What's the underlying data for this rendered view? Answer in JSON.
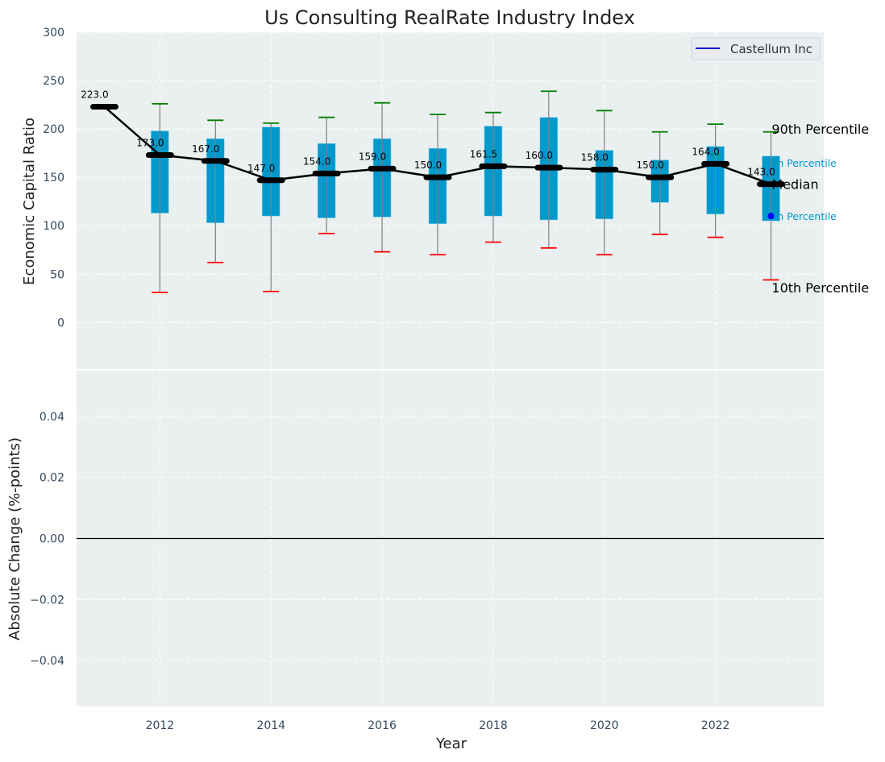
{
  "chart_data": [
    {
      "type": "box",
      "panel": "top",
      "title": "Us Consulting RealRate Industry Index",
      "xlabel": "",
      "ylabel": "Economic Capital Ratio",
      "xlim": [
        2010.5,
        2023.95
      ],
      "ylim": [
        -48,
        300
      ],
      "yticks": [
        0,
        50,
        100,
        150,
        200,
        250,
        300
      ],
      "grid": true,
      "legend": {
        "placement": "top-right",
        "entries": [
          {
            "label": "Castellum Inc",
            "color": "#0000cc"
          }
        ]
      },
      "median_line": {
        "name": "Industry Median",
        "x": [
          2011,
          2012,
          2013,
          2014,
          2015,
          2016,
          2017,
          2018,
          2019,
          2020,
          2021,
          2022,
          2023
        ],
        "values": [
          223.0,
          173.0,
          167.0,
          147.0,
          154.0,
          159.0,
          150.0,
          161.5,
          160.0,
          158.0,
          150.0,
          164.0,
          143.0
        ],
        "labels": [
          "223.0",
          "173.0",
          "167.0",
          "147.0",
          "154.0",
          "159.0",
          "150.0",
          "161.5",
          "160.0",
          "158.0",
          "150.0",
          "164.0",
          "143.0"
        ]
      },
      "boxes": [
        {
          "x": 2012,
          "p10": 31,
          "p25": 113,
          "p75": 198,
          "p90": 226
        },
        {
          "x": 2013,
          "p10": 62,
          "p25": 103,
          "p75": 190,
          "p90": 209
        },
        {
          "x": 2014,
          "p10": 32,
          "p25": 110,
          "p75": 202,
          "p90": 206
        },
        {
          "x": 2015,
          "p10": 92,
          "p25": 108,
          "p75": 185,
          "p90": 212
        },
        {
          "x": 2016,
          "p10": 73,
          "p25": 109,
          "p75": 190,
          "p90": 227
        },
        {
          "x": 2017,
          "p10": 70,
          "p25": 102,
          "p75": 180,
          "p90": 215
        },
        {
          "x": 2018,
          "p10": 83,
          "p25": 110,
          "p75": 203,
          "p90": 217
        },
        {
          "x": 2019,
          "p10": 77,
          "p25": 106,
          "p75": 212,
          "p90": 239
        },
        {
          "x": 2020,
          "p10": 70,
          "p25": 107,
          "p75": 178,
          "p90": 219
        },
        {
          "x": 2021,
          "p10": 91,
          "p25": 124,
          "p75": 168,
          "p90": 197
        },
        {
          "x": 2022,
          "p10": 88,
          "p25": 112,
          "p75": 182,
          "p90": 205
        },
        {
          "x": 2023,
          "p10": 44,
          "p25": 105,
          "p75": 172,
          "p90": 197
        }
      ],
      "company_points": [
        {
          "name": "Castellum Inc",
          "x": 2023,
          "y": 110
        }
      ],
      "annotations": [
        {
          "text": "90th Percentile",
          "x": 2023.1,
          "y": 200,
          "color": "#000000"
        },
        {
          "text": "75th Percentile",
          "x": 2023.1,
          "y": 165,
          "color": "#0099cc",
          "visible_text": "th Percentile"
        },
        {
          "text": "Median",
          "x": 2023.1,
          "y": 143,
          "color": "#000000"
        },
        {
          "text": "25th Percentile",
          "x": 2023.1,
          "y": 110,
          "color": "#0099cc",
          "visible_text": "th Percentile"
        },
        {
          "text": "10th Percentile",
          "x": 2023.1,
          "y": 36,
          "color": "#000000"
        }
      ],
      "colors": {
        "box": "#0099cc",
        "p90_cap": "#008000",
        "p10_cap": "#ff0000",
        "median": "#000000",
        "company": "#0000ff",
        "whisker": "#808080"
      }
    },
    {
      "type": "line",
      "panel": "bottom",
      "xlabel": "Year",
      "ylabel": "Absolute Change (%-points)",
      "xlim": [
        2010.5,
        2023.95
      ],
      "ylim": [
        -0.055,
        0.055
      ],
      "xticks": [
        2012,
        2014,
        2016,
        2018,
        2020,
        2022
      ],
      "yticks": [
        -0.04,
        -0.02,
        0.0,
        0.02,
        0.04
      ],
      "ytick_labels": [
        "−0.04",
        "−0.02",
        "0.00",
        "0.02",
        "0.04"
      ],
      "grid": true,
      "reference_line": {
        "y": 0.0,
        "color": "#000000"
      },
      "series": []
    }
  ]
}
